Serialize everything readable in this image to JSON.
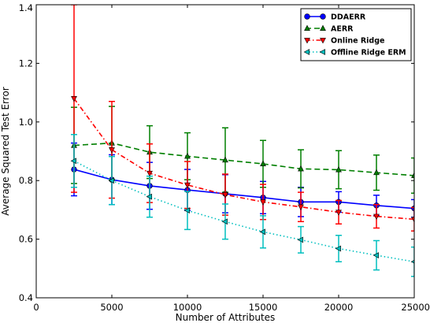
{
  "chart_data": {
    "type": "line",
    "xlabel": "Number of Attributes",
    "ylabel": "Average Squared Test Error",
    "xlim": [
      0,
      25000
    ],
    "ylim": [
      0.4,
      1.4
    ],
    "xticks": [
      0,
      5000,
      10000,
      15000,
      20000,
      25000
    ],
    "xtick_labels": [
      "0",
      "5000",
      "10000",
      "15000",
      "20000",
      "25000"
    ],
    "yticks": [
      0.4,
      0.6,
      0.8,
      1.0,
      1.2,
      1.4
    ],
    "ytick_labels": [
      "0.4",
      "0.6",
      "0.8",
      "1.0",
      "1.2",
      "1.4"
    ],
    "grid": false,
    "legend_position": "top-right",
    "x": [
      2500,
      5000,
      7500,
      10000,
      12500,
      15000,
      17500,
      20000,
      22500,
      25000
    ],
    "series": [
      {
        "name": "DDAERR",
        "color": "#0000ff",
        "line_style": "solid",
        "marker": "circle",
        "values": [
          0.838,
          0.803,
          0.782,
          0.768,
          0.755,
          0.742,
          0.727,
          0.727,
          0.715,
          0.705
        ],
        "error": [
          0.09,
          0.085,
          0.08,
          0.07,
          0.065,
          0.055,
          0.05,
          0.035,
          0.035,
          0.03
        ]
      },
      {
        "name": "AERR",
        "color": "#007f00",
        "line_style": "dashed",
        "marker": "triangle-up",
        "values": [
          0.92,
          0.928,
          0.897,
          0.883,
          0.87,
          0.857,
          0.84,
          0.837,
          0.827,
          0.817
        ],
        "error": [
          0.13,
          0.125,
          0.09,
          0.08,
          0.11,
          0.08,
          0.065,
          0.065,
          0.06,
          0.06
        ]
      },
      {
        "name": "Online Ridge",
        "color": "#ff0000",
        "line_style": "dashdot",
        "marker": "triangle-down",
        "values": [
          1.08,
          0.905,
          0.825,
          0.785,
          0.752,
          0.727,
          0.71,
          0.692,
          0.678,
          0.668
        ],
        "error": [
          0.32,
          0.165,
          0.1,
          0.08,
          0.07,
          0.06,
          0.05,
          0.04,
          0.04,
          0.04
        ]
      },
      {
        "name": "Offline Ridge ERM",
        "color": "#00bfbf",
        "line_style": "dotted",
        "marker": "triangle-left",
        "values": [
          0.867,
          0.8,
          0.745,
          0.698,
          0.66,
          0.625,
          0.598,
          0.568,
          0.545,
          0.523
        ],
        "error": [
          0.09,
          0.082,
          0.07,
          0.065,
          0.06,
          0.055,
          0.045,
          0.045,
          0.05,
          0.05
        ]
      }
    ]
  }
}
